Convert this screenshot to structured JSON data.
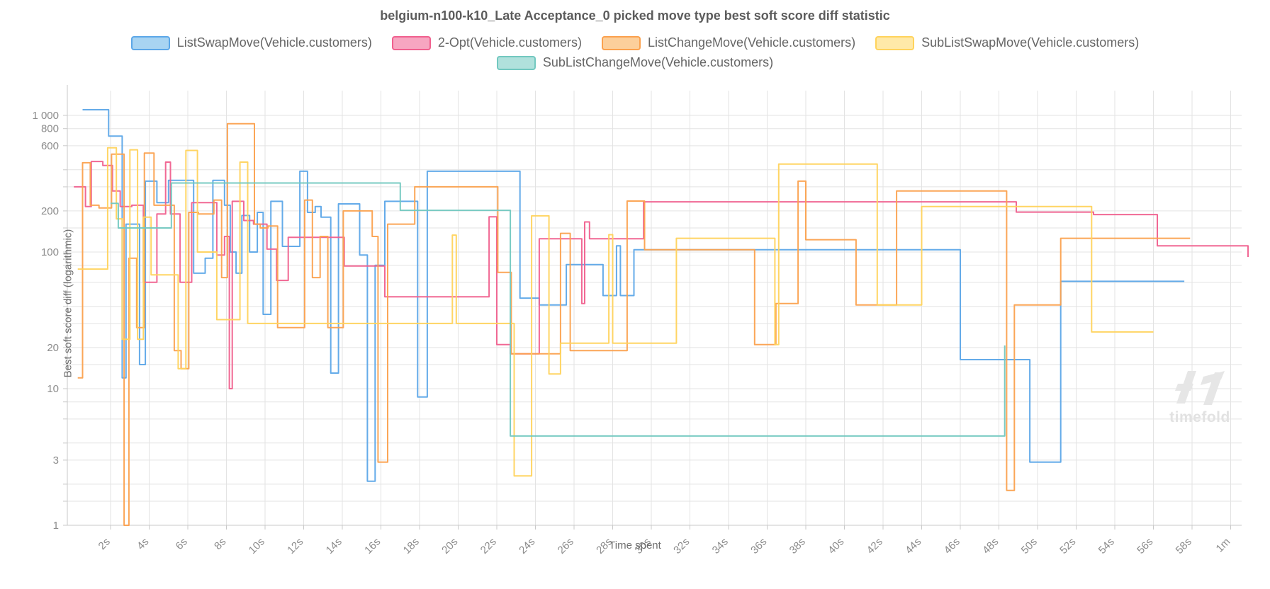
{
  "title": "belgium-n100-k10_Late Acceptance_0 picked move type best soft score diff statistic",
  "watermark": {
    "text": "timefold"
  },
  "colors": {
    "grid": "#e3e3e3",
    "axis": "#c9c9c9",
    "tick_label": "#8c8c8c",
    "title_text": "#5c5c5c",
    "legend_text": "#666666"
  },
  "chart_data": {
    "type": "line",
    "step": "post",
    "title": "belgium-n100-k10_Late Acceptance_0 picked move type best soft score diff statistic",
    "xlabel": "Time spent",
    "ylabel": "Best soft score diff (logarithmic)",
    "x_unit": "seconds",
    "y_scale": "log",
    "xlim": [
      0,
      61
    ],
    "ylim": [
      1,
      1480
    ],
    "grid": true,
    "legend_position": "top",
    "legend_rows": [
      4,
      1
    ],
    "x_ticks": [
      {
        "t": 2,
        "label": "2s"
      },
      {
        "t": 4,
        "label": "4s"
      },
      {
        "t": 6,
        "label": "6s"
      },
      {
        "t": 8,
        "label": "8s"
      },
      {
        "t": 10,
        "label": "10s"
      },
      {
        "t": 12,
        "label": "12s"
      },
      {
        "t": 14,
        "label": "14s"
      },
      {
        "t": 16,
        "label": "16s"
      },
      {
        "t": 18,
        "label": "18s"
      },
      {
        "t": 20,
        "label": "20s"
      },
      {
        "t": 22,
        "label": "22s"
      },
      {
        "t": 24,
        "label": "24s"
      },
      {
        "t": 26,
        "label": "26s"
      },
      {
        "t": 28,
        "label": "28s"
      },
      {
        "t": 30,
        "label": "30s"
      },
      {
        "t": 32,
        "label": "32s"
      },
      {
        "t": 34,
        "label": "34s"
      },
      {
        "t": 36,
        "label": "36s"
      },
      {
        "t": 38,
        "label": "38s"
      },
      {
        "t": 40,
        "label": "40s"
      },
      {
        "t": 42,
        "label": "42s"
      },
      {
        "t": 44,
        "label": "44s"
      },
      {
        "t": 46,
        "label": "46s"
      },
      {
        "t": 48,
        "label": "48s"
      },
      {
        "t": 50,
        "label": "50s"
      },
      {
        "t": 52,
        "label": "52s"
      },
      {
        "t": 54,
        "label": "54s"
      },
      {
        "t": 56,
        "label": "56s"
      },
      {
        "t": 58,
        "label": "58s"
      },
      {
        "t": 60,
        "label": "1m"
      }
    ],
    "y_gridlines": [
      1,
      1.5,
      2,
      3,
      4,
      6,
      8,
      10,
      15,
      20,
      30,
      40,
      60,
      80,
      100,
      150,
      200,
      300,
      400,
      600,
      800,
      1000
    ],
    "y_labeled_ticks": [
      {
        "v": 1000,
        "label": "1 000"
      },
      {
        "v": 800,
        "label": "800"
      },
      {
        "v": 600,
        "label": "600"
      },
      {
        "v": 200,
        "label": "200"
      },
      {
        "v": 100,
        "label": "100"
      },
      {
        "v": 20,
        "label": "20"
      },
      {
        "v": 10,
        "label": "10"
      },
      {
        "v": 3,
        "label": "3"
      },
      {
        "v": 1,
        "label": "1"
      }
    ],
    "series": [
      {
        "name": "ListSwapMove(Vehicle.customers)",
        "line_color": "#5ca7e8",
        "fill_color": "#a8d4f2",
        "points": [
          [
            0.55,
            1100
          ],
          [
            1.9,
            705
          ],
          [
            2.6,
            12
          ],
          [
            2.8,
            160
          ],
          [
            3.5,
            15
          ],
          [
            3.8,
            330
          ],
          [
            4.4,
            230
          ],
          [
            5.0,
            335
          ],
          [
            6.3,
            70
          ],
          [
            6.9,
            90
          ],
          [
            7.3,
            335
          ],
          [
            7.9,
            220
          ],
          [
            8.2,
            100
          ],
          [
            8.5,
            70
          ],
          [
            8.8,
            185
          ],
          [
            9.2,
            100
          ],
          [
            9.6,
            195
          ],
          [
            9.9,
            35
          ],
          [
            10.3,
            235
          ],
          [
            10.9,
            110
          ],
          [
            11.8,
            390
          ],
          [
            12.2,
            195
          ],
          [
            12.6,
            215
          ],
          [
            12.9,
            180
          ],
          [
            13.4,
            13
          ],
          [
            13.8,
            225
          ],
          [
            14.9,
            95
          ],
          [
            15.3,
            2.1
          ],
          [
            15.7,
            80
          ],
          [
            16.2,
            235
          ],
          [
            17.9,
            8.7
          ],
          [
            18.4,
            390
          ],
          [
            23.2,
            46
          ],
          [
            24.2,
            41
          ],
          [
            25.6,
            81
          ],
          [
            27.5,
            48
          ],
          [
            28.2,
            111
          ],
          [
            28.4,
            48
          ],
          [
            29.1,
            104
          ],
          [
            46.0,
            16.3
          ],
          [
            49.6,
            2.9
          ],
          [
            51.2,
            61
          ],
          [
            57.6,
            61
          ]
        ]
      },
      {
        "name": "2-Opt(Vehicle.customers)",
        "line_color": "#f0608e",
        "fill_color": "#f7a6c1",
        "points": [
          [
            0.1,
            300
          ],
          [
            0.7,
            215
          ],
          [
            1.0,
            460
          ],
          [
            1.6,
            430
          ],
          [
            2.1,
            280
          ],
          [
            2.5,
            215
          ],
          [
            3.1,
            220
          ],
          [
            3.7,
            60
          ],
          [
            4.4,
            190
          ],
          [
            4.85,
            455
          ],
          [
            5.1,
            190
          ],
          [
            5.6,
            60
          ],
          [
            6.2,
            230
          ],
          [
            7.5,
            95
          ],
          [
            7.9,
            130
          ],
          [
            8.15,
            10
          ],
          [
            8.3,
            235
          ],
          [
            8.9,
            170
          ],
          [
            9.4,
            160
          ],
          [
            10.1,
            105
          ],
          [
            10.6,
            62
          ],
          [
            11.2,
            128
          ],
          [
            14.1,
            79
          ],
          [
            16.2,
            47
          ],
          [
            21.6,
            181
          ],
          [
            22.0,
            21
          ],
          [
            22.7,
            18
          ],
          [
            24.2,
            125
          ],
          [
            26.4,
            42
          ],
          [
            26.55,
            166
          ],
          [
            26.8,
            125
          ],
          [
            29.6,
            233
          ],
          [
            48.9,
            196
          ],
          [
            52.9,
            188
          ],
          [
            56.2,
            111
          ],
          [
            60.9,
            92
          ]
        ]
      },
      {
        "name": "ListChangeMove(Vehicle.customers)",
        "line_color": "#fba14e",
        "fill_color": "#fccf9b",
        "points": [
          [
            0.3,
            12
          ],
          [
            0.55,
            450
          ],
          [
            0.95,
            220
          ],
          [
            1.4,
            210
          ],
          [
            2.05,
            520
          ],
          [
            2.7,
            1
          ],
          [
            2.95,
            90
          ],
          [
            3.35,
            28
          ],
          [
            3.75,
            530
          ],
          [
            4.25,
            220
          ],
          [
            5.3,
            19
          ],
          [
            5.65,
            14
          ],
          [
            6.05,
            195
          ],
          [
            6.55,
            190
          ],
          [
            7.35,
            240
          ],
          [
            7.75,
            65
          ],
          [
            8.05,
            870
          ],
          [
            9.45,
            160
          ],
          [
            9.75,
            150
          ],
          [
            10.15,
            155
          ],
          [
            10.65,
            28
          ],
          [
            12.05,
            240
          ],
          [
            12.45,
            65
          ],
          [
            12.85,
            130
          ],
          [
            13.25,
            28
          ],
          [
            14.05,
            200
          ],
          [
            15.55,
            130
          ],
          [
            15.85,
            2.9
          ],
          [
            16.35,
            160
          ],
          [
            17.75,
            300
          ],
          [
            22.05,
            71
          ],
          [
            22.75,
            18
          ],
          [
            25.3,
            137
          ],
          [
            25.8,
            19
          ],
          [
            28.75,
            236
          ],
          [
            29.65,
            104
          ],
          [
            35.35,
            21
          ],
          [
            36.45,
            42
          ],
          [
            37.6,
            330
          ],
          [
            38.0,
            123
          ],
          [
            40.6,
            41
          ],
          [
            42.7,
            280
          ],
          [
            48.4,
            1.8
          ],
          [
            48.8,
            41
          ],
          [
            51.2,
            126
          ],
          [
            57.9,
            126
          ]
        ]
      },
      {
        "name": "SubListSwapMove(Vehicle.customers)",
        "line_color": "#ffd35c",
        "fill_color": "#ffe9a8",
        "points": [
          [
            0.3,
            75
          ],
          [
            1.85,
            580
          ],
          [
            2.3,
            175
          ],
          [
            2.6,
            23
          ],
          [
            3.0,
            560
          ],
          [
            3.4,
            23
          ],
          [
            3.7,
            180
          ],
          [
            4.1,
            68
          ],
          [
            5.5,
            14
          ],
          [
            5.9,
            554
          ],
          [
            6.5,
            100
          ],
          [
            7.5,
            32
          ],
          [
            8.7,
            455
          ],
          [
            9.1,
            30
          ],
          [
            19.7,
            133
          ],
          [
            19.9,
            30
          ],
          [
            22.9,
            2.3
          ],
          [
            23.8,
            184
          ],
          [
            24.7,
            12.8
          ],
          [
            25.3,
            21.5
          ],
          [
            27.8,
            134
          ],
          [
            28.0,
            21.5
          ],
          [
            31.3,
            126
          ],
          [
            36.4,
            21
          ],
          [
            36.6,
            440
          ],
          [
            41.7,
            41
          ],
          [
            44.0,
            215
          ],
          [
            52.8,
            26
          ],
          [
            56.0,
            26
          ]
        ]
      },
      {
        "name": "SubListChangeMove(Vehicle.customers)",
        "line_color": "#72c8c0",
        "fill_color": "#b0e1dc",
        "points": [
          [
            2.0,
            227
          ],
          [
            2.4,
            150
          ],
          [
            5.15,
            320
          ],
          [
            17.0,
            202
          ],
          [
            22.7,
            4.5
          ],
          [
            48.3,
            20.7
          ]
        ]
      }
    ]
  }
}
